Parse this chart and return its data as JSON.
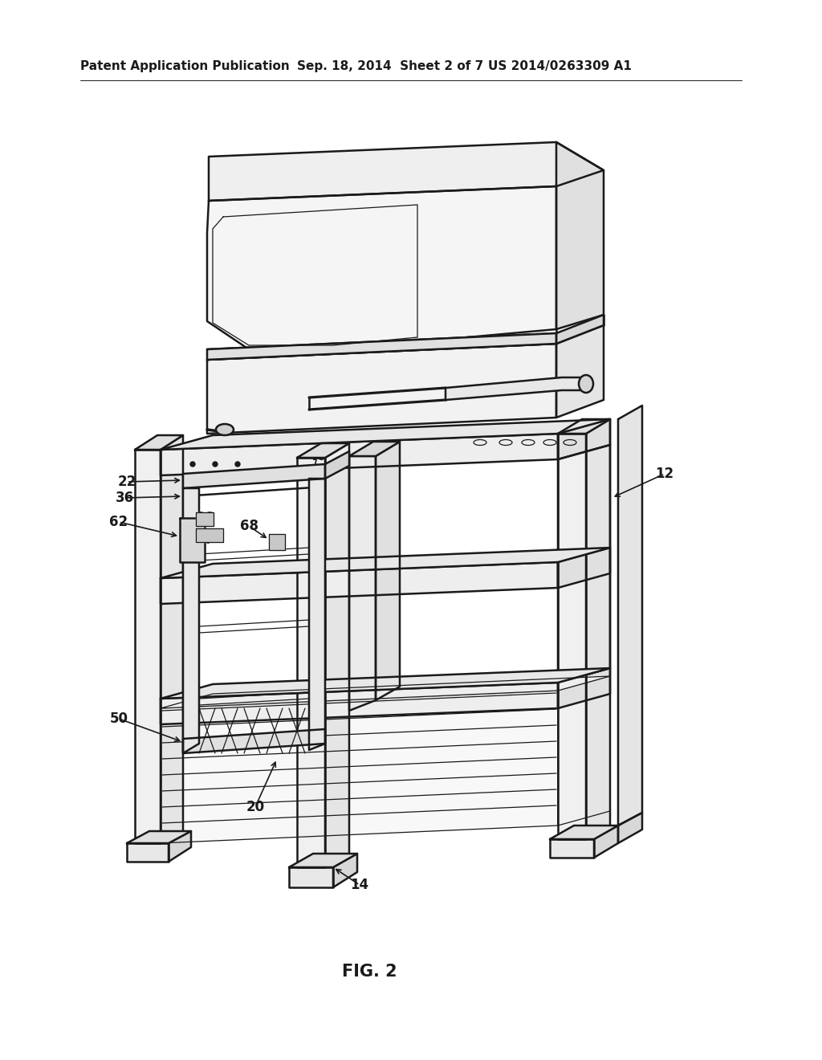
{
  "bg_color": "#ffffff",
  "line_color": "#1a1a1a",
  "header_left": "Patent Application Publication",
  "header_mid": "Sep. 18, 2014  Sheet 2 of 7",
  "header_right": "US 2014/0263309 A1",
  "footer_label": "FIG. 2",
  "header_fontsize": 11,
  "footer_fontsize": 15,
  "ref_fontsize": 12,
  "lw_main": 1.8,
  "lw_thin": 0.9,
  "lw_thick": 2.5
}
